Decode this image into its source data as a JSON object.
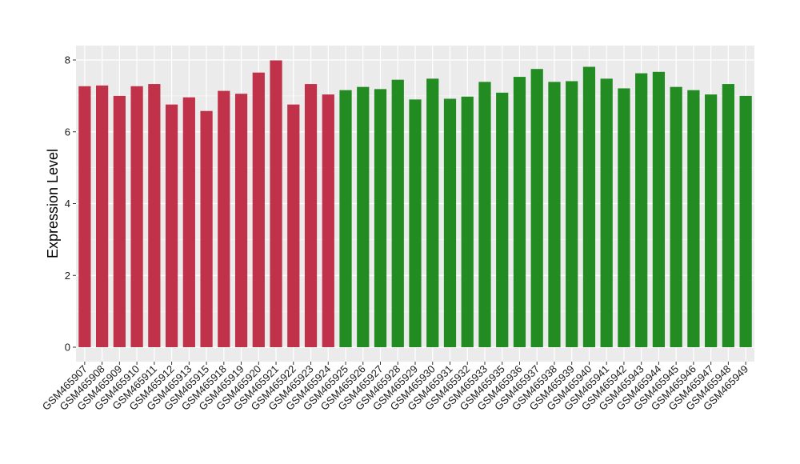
{
  "chart_data": {
    "type": "bar",
    "title": "",
    "xlabel": "",
    "ylabel": "Expression Level",
    "ylim": [
      0,
      8.3
    ],
    "yticks": [
      0,
      2,
      4,
      6,
      8
    ],
    "grid": true,
    "legend": "none",
    "colors": {
      "group1": "#C0314A",
      "group2": "#228B22",
      "panel_bg": "#EBEBEB",
      "grid": "#FFFFFF"
    },
    "categories": [
      "GSM465907",
      "GSM465908",
      "GSM465909",
      "GSM465910",
      "GSM465911",
      "GSM465912",
      "GSM465913",
      "GSM465915",
      "GSM465918",
      "GSM465919",
      "GSM465920",
      "GSM465921",
      "GSM465922",
      "GSM465923",
      "GSM465924",
      "GSM465925",
      "GSM465926",
      "GSM465927",
      "GSM465928",
      "GSM465929",
      "GSM465930",
      "GSM465931",
      "GSM465932",
      "GSM465933",
      "GSM465935",
      "GSM465936",
      "GSM465937",
      "GSM465938",
      "GSM465939",
      "GSM465940",
      "GSM465941",
      "GSM465942",
      "GSM465943",
      "GSM465944",
      "GSM465945",
      "GSM465946",
      "GSM465947",
      "GSM465948",
      "GSM465949"
    ],
    "values": [
      7.27,
      7.29,
      7.0,
      7.27,
      7.33,
      6.76,
      6.96,
      6.58,
      7.14,
      7.06,
      7.65,
      7.99,
      6.76,
      7.33,
      7.04,
      7.16,
      7.25,
      7.19,
      7.45,
      6.9,
      7.48,
      6.92,
      6.98,
      7.39,
      7.09,
      7.53,
      7.75,
      7.39,
      7.41,
      7.81,
      7.48,
      7.21,
      7.63,
      7.67,
      7.25,
      7.16,
      7.04,
      7.33,
      7.0
    ],
    "groups": [
      1,
      1,
      1,
      1,
      1,
      1,
      1,
      1,
      1,
      1,
      1,
      1,
      1,
      1,
      1,
      2,
      2,
      2,
      2,
      2,
      2,
      2,
      2,
      2,
      2,
      2,
      2,
      2,
      2,
      2,
      2,
      2,
      2,
      2,
      2,
      2,
      2,
      2,
      2
    ]
  }
}
